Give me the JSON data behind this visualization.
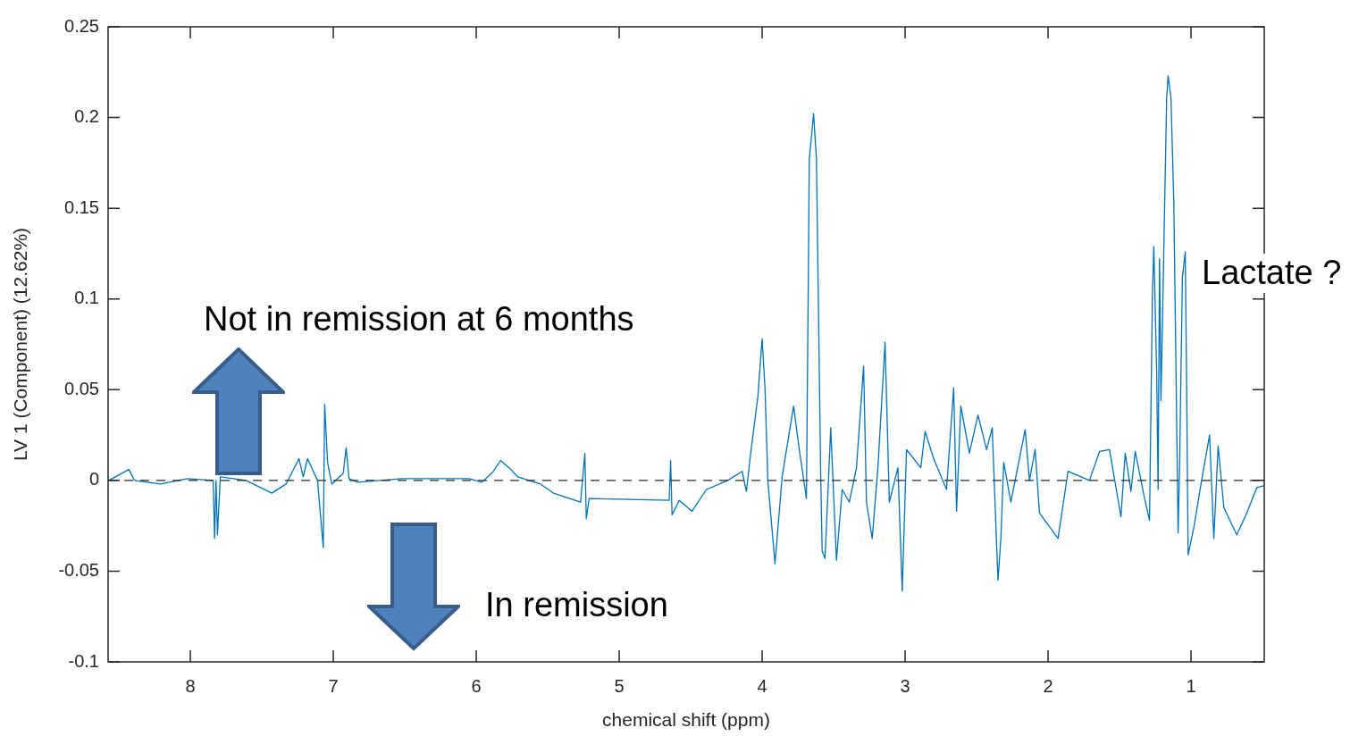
{
  "chart_data": {
    "type": "line",
    "xlabel": "chemical shift (ppm)",
    "ylabel": "LV 1 (Component) (12.62%)",
    "xlim": [
      8.575,
      0.4875
    ],
    "xticks": [
      8,
      7,
      6,
      5,
      4,
      3,
      2,
      1
    ],
    "ylim": [
      -0.1,
      0.25
    ],
    "yticks": [
      -0.1,
      -0.05,
      0,
      0.05,
      0.1,
      0.15,
      0.2,
      0.25
    ],
    "grid": false,
    "legend": false,
    "marker": "none",
    "line_style": "solid",
    "ref_lines": [
      {
        "axis": "y",
        "value": 0,
        "color": "#262626",
        "line_style": "dashed"
      }
    ],
    "annotations": [
      "Not in remission at 6 months",
      "In remission",
      "Lactate ?"
    ],
    "series": [
      {
        "color": "#0072bd",
        "x": [
          8.57,
          8.43,
          8.39,
          8.21,
          8.02,
          7.84,
          7.83,
          7.82,
          7.81,
          7.79,
          7.61,
          7.43,
          7.33,
          7.24,
          7.21,
          7.18,
          7.11,
          7.07,
          7.06,
          7.04,
          7.01,
          6.93,
          6.91,
          6.89,
          6.83,
          6.52,
          6.05,
          5.96,
          5.88,
          5.83,
          5.77,
          5.71,
          5.55,
          5.46,
          5.27,
          5.24,
          5.23,
          5.21,
          4.65,
          4.64,
          4.63,
          4.58,
          4.49,
          4.39,
          4.24,
          4.14,
          4.11,
          4.08,
          4.03,
          4.0,
          3.98,
          3.96,
          3.91,
          3.86,
          3.78,
          3.74,
          3.69,
          3.67,
          3.64,
          3.62,
          3.59,
          3.58,
          3.56,
          3.52,
          3.48,
          3.44,
          3.39,
          3.34,
          3.29,
          3.27,
          3.23,
          3.19,
          3.14,
          3.11,
          3.05,
          3.02,
          2.99,
          2.89,
          2.86,
          2.8,
          2.71,
          2.66,
          2.64,
          2.61,
          2.55,
          2.49,
          2.43,
          2.39,
          2.38,
          2.35,
          2.33,
          2.31,
          2.26,
          2.16,
          2.13,
          2.09,
          2.06,
          1.93,
          1.86,
          1.71,
          1.64,
          1.57,
          1.49,
          1.46,
          1.42,
          1.39,
          1.33,
          1.29,
          1.27,
          1.26,
          1.24,
          1.23,
          1.22,
          1.21,
          1.17,
          1.16,
          1.14,
          1.12,
          1.09,
          1.08,
          1.06,
          1.04,
          1.03,
          1.02,
          0.98,
          0.93,
          0.87,
          0.84,
          0.81,
          0.77,
          0.68,
          0.61,
          0.54,
          0.49
        ],
        "values": [
          0,
          0.006,
          0,
          -0.002,
          0.001,
          0,
          -0.032,
          0,
          -0.03,
          0.002,
          0,
          -0.007,
          -0.002,
          0.012,
          0.002,
          0.012,
          0,
          -0.037,
          0.042,
          0.01,
          -0.002,
          0.004,
          0.018,
          0.001,
          -0.001,
          0.001,
          0.001,
          -0.001,
          0.005,
          0.011,
          0.007,
          0.002,
          -0.002,
          -0.007,
          -0.012,
          0.015,
          -0.021,
          -0.01,
          -0.011,
          0.011,
          -0.019,
          -0.011,
          -0.017,
          -0.005,
          0,
          0.005,
          -0.006,
          0.015,
          0.046,
          0.078,
          0.051,
          0,
          -0.046,
          0.002,
          0.041,
          0.017,
          -0.01,
          0.177,
          0.202,
          0.177,
          0.002,
          -0.039,
          -0.043,
          0.029,
          -0.044,
          -0.005,
          -0.012,
          0.007,
          0.063,
          -0.012,
          -0.032,
          0.007,
          0.076,
          -0.012,
          0.007,
          -0.061,
          0.017,
          0.007,
          0.027,
          0.012,
          -0.005,
          0.051,
          -0.017,
          0.041,
          0.015,
          0.036,
          0.017,
          0.029,
          0.007,
          -0.055,
          -0.032,
          0.01,
          -0.012,
          0.028,
          0,
          0.017,
          -0.018,
          -0.032,
          0.005,
          0,
          0.016,
          0.017,
          -0.02,
          0.015,
          -0.006,
          0.016,
          -0.008,
          -0.022,
          0.102,
          0.129,
          0.06,
          -0.005,
          0.122,
          0.044,
          0.211,
          0.223,
          0.211,
          0.153,
          -0.029,
          0.007,
          0.112,
          0.126,
          0.048,
          -0.041,
          -0.026,
          -0.002,
          0.025,
          -0.032,
          0.019,
          -0.015,
          -0.03,
          -0.018,
          -0.004,
          -0.003
        ]
      }
    ]
  }
}
